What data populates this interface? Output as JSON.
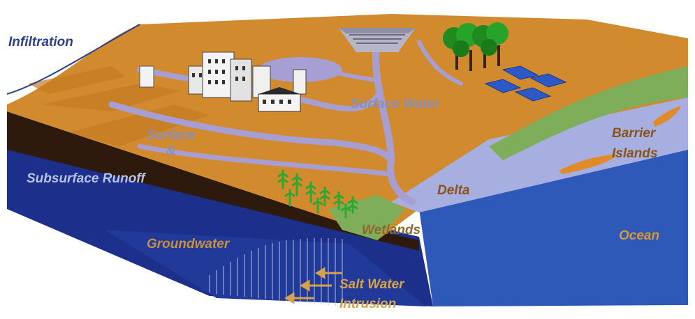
{
  "labels": {
    "infiltration": "Infiltration",
    "surface_water": "Surface Water",
    "surface": "Surface",
    "ampersand": "&",
    "subsurface_runoff": "Subsurface Runoff",
    "barrier": "Barrier",
    "islands": "Islands",
    "delta": "Delta",
    "wetlands": "Wetlands",
    "groundwater": "Groundwater",
    "ocean": "Ocean",
    "salt_water": "Salt Water",
    "intrusion": "Intrusion"
  },
  "colors": {
    "land": "#d28a2e",
    "land_dark": "#c47a22",
    "water_surface": "#a79fd4",
    "ocean": "#2f59b8",
    "ocean_light": "#a7afe0",
    "groundwater": "#1c2f8a",
    "soil_dark": "#2e1a0c",
    "wetland": "#7fae5a",
    "forest": "#1f8a1f",
    "solar_panel": "#2d58c8"
  },
  "icons": {
    "city": "city-buildings-icon",
    "trees": "trees-icon",
    "solar": "solar-panel-icon",
    "dam": "dam-icon",
    "plants": "wetland-plants-icon",
    "arrows": "intrusion-arrows-icon"
  }
}
